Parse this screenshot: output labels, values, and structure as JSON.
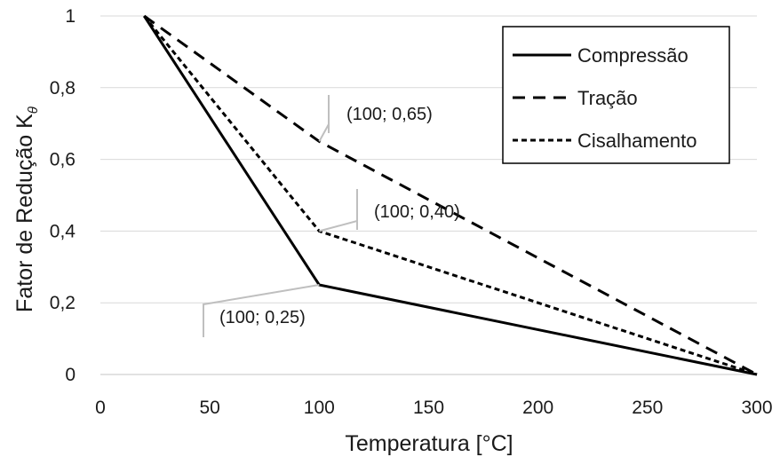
{
  "chart_data": {
    "type": "line",
    "xlabel": "Temperatura [°C]",
    "ylabel_main": "Fator de Redução K",
    "ylabel_sub": "θ",
    "xlim": [
      0,
      300
    ],
    "ylim": [
      0,
      1
    ],
    "x_ticks": [
      0,
      50,
      100,
      150,
      200,
      250,
      300
    ],
    "y_ticks": [
      0,
      0.2,
      0.4,
      0.6,
      0.8,
      1
    ],
    "x_tick_labels": [
      "0",
      "50",
      "100",
      "150",
      "200",
      "250",
      "300"
    ],
    "y_tick_labels": [
      "0",
      "0,2",
      "0,4",
      "0,6",
      "0,8",
      "1"
    ],
    "grid": "horizontal",
    "legend_position": "top-right",
    "series": [
      {
        "name": "Compressão",
        "style": "solid",
        "color": "#000000",
        "x": [
          20,
          100,
          300
        ],
        "y": [
          1,
          0.25,
          0
        ]
      },
      {
        "name": "Tração",
        "style": "long-dash",
        "color": "#000000",
        "x": [
          20,
          100,
          300
        ],
        "y": [
          1,
          0.65,
          0
        ]
      },
      {
        "name": "Cisalhamento",
        "style": "short-dash",
        "color": "#000000",
        "x": [
          20,
          100,
          300
        ],
        "y": [
          1,
          0.4,
          0
        ]
      }
    ],
    "annotations": [
      {
        "text": "(100; 0,65)",
        "point": [
          100,
          0.65
        ]
      },
      {
        "text": "(100; 0,40)",
        "point": [
          100,
          0.4
        ]
      },
      {
        "text": "(100; 0,25)",
        "point": [
          100,
          0.25
        ]
      }
    ]
  }
}
